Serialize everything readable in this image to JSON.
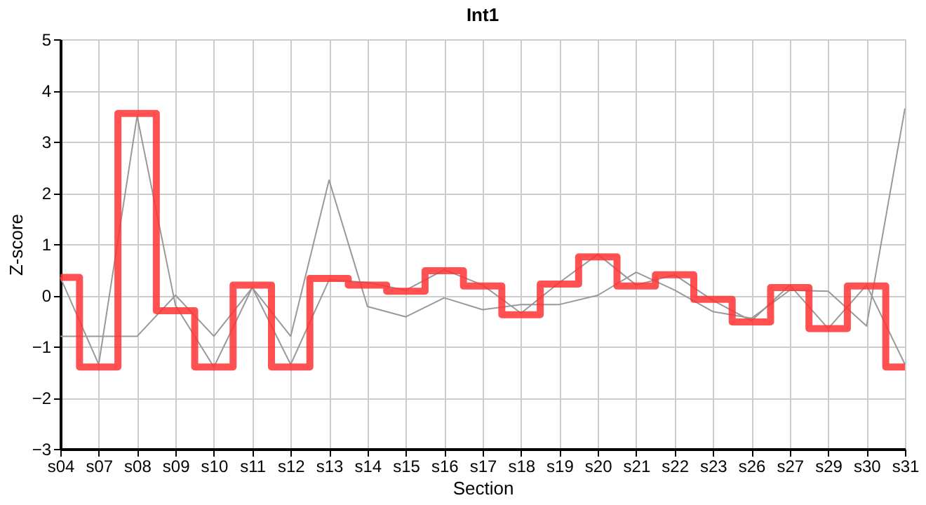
{
  "chart_data": {
    "type": "line",
    "title": "Int1",
    "xlabel": "Section",
    "ylabel": "Z-score",
    "categories": [
      "s04",
      "s07",
      "s08",
      "s09",
      "s10",
      "s11",
      "s12",
      "s13",
      "s14",
      "s15",
      "s16",
      "s17",
      "s18",
      "s19",
      "s20",
      "s21",
      "s22",
      "s23",
      "s26",
      "s27",
      "s29",
      "s30",
      "s31"
    ],
    "series": [
      {
        "color": "#999999",
        "values": [
          -0.8,
          -0.8,
          -0.8,
          0,
          -0.8,
          0.15,
          -0.8,
          2.25,
          -0.22,
          -0.42,
          -0.05,
          -0.28,
          -0.18,
          -0.18,
          0,
          0.45,
          0.1,
          -0.32,
          -0.45,
          0.1,
          0.08,
          -0.6,
          3.65
        ]
      },
      {
        "color": "#999999",
        "values": [
          0.35,
          -1.35,
          3.5,
          -0.2,
          -1.4,
          0.15,
          -1.35,
          0.3,
          0.25,
          0.1,
          0.5,
          0.2,
          -0.35,
          0.25,
          0.8,
          0.2,
          0.4,
          -0.1,
          -0.5,
          0.2,
          -0.65,
          0.2,
          -1.35
        ]
      },
      {
        "type": "step",
        "color": "#ff3333",
        "values": [
          0.35,
          -1.4,
          3.55,
          -0.3,
          -1.4,
          0.2,
          -1.4,
          0.33,
          0.2,
          0.08,
          0.48,
          0.18,
          -0.38,
          0.22,
          0.75,
          0.18,
          0.4,
          -0.08,
          -0.52,
          0.15,
          -0.65,
          0.18,
          -1.4
        ]
      }
    ],
    "ylim": [
      -3,
      5
    ],
    "yticks": [
      -3,
      -2,
      -1,
      0,
      1,
      2,
      3,
      4,
      5
    ],
    "grid": true,
    "marker": "none",
    "line_style": "solid"
  }
}
